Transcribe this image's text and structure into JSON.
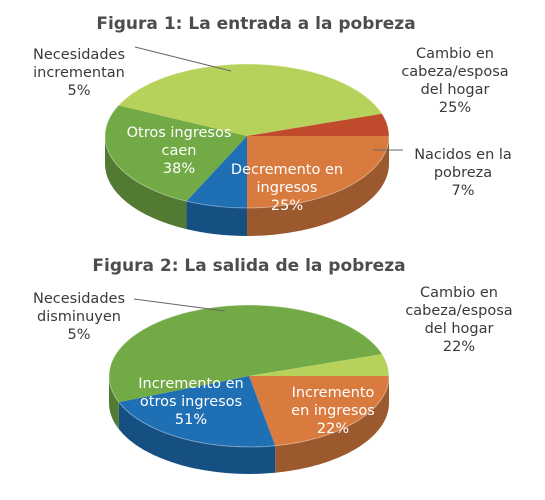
{
  "chart_data": [
    {
      "type": "pie",
      "title": "Figura 1: La entrada a la pobreza",
      "slices": [
        {
          "label": "Cambio en cabeza/esposa del hogar",
          "lines": [
            "Cambio en",
            "cabeza/esposa",
            "del hogar"
          ],
          "pct_text": "25%",
          "value": 25,
          "color": "#d97b3e"
        },
        {
          "label": "Nacidos en la pobreza",
          "lines": [
            "Nacidos en la",
            "pobreza"
          ],
          "pct_text": "7%",
          "value": 7,
          "color": "#1f6fb5"
        },
        {
          "label": "Decremento en ingresos",
          "lines": [
            "Decremento en",
            "ingresos"
          ],
          "pct_text": "25%",
          "value": 25,
          "color": "#72aa45"
        },
        {
          "label": "Otros ingresos caen",
          "lines": [
            "Otros ingresos",
            "caen"
          ],
          "pct_text": "38%",
          "value": 38,
          "color": "#b6d25a"
        },
        {
          "label": "Necesidades incrementan",
          "lines": [
            "Necesidades",
            "incrementan"
          ],
          "pct_text": "5%",
          "value": 5,
          "color": "#c04a2c"
        }
      ]
    },
    {
      "type": "pie",
      "title": "Figura 2: La salida de la pobreza",
      "slices": [
        {
          "label": "Cambio en cabeza/esposa del hogar",
          "lines": [
            "Cambio en",
            "cabeza/esposa",
            "del hogar"
          ],
          "pct_text": "22%",
          "value": 22,
          "color": "#d97b3e"
        },
        {
          "label": "Incremento en ingresos",
          "lines": [
            "Incremento",
            "en ingresos"
          ],
          "pct_text": "22%",
          "value": 22,
          "color": "#1f6fb5"
        },
        {
          "label": "Incremento en otros ingresos",
          "lines": [
            "Incremento en",
            "otros ingresos"
          ],
          "pct_text": "51%",
          "value": 51,
          "color": "#72aa45"
        },
        {
          "label": "Necesidades disminuyen",
          "lines": [
            "Necesidades",
            "disminuyen"
          ],
          "pct_text": "5%",
          "value": 5,
          "color": "#b6d25a"
        }
      ]
    }
  ]
}
